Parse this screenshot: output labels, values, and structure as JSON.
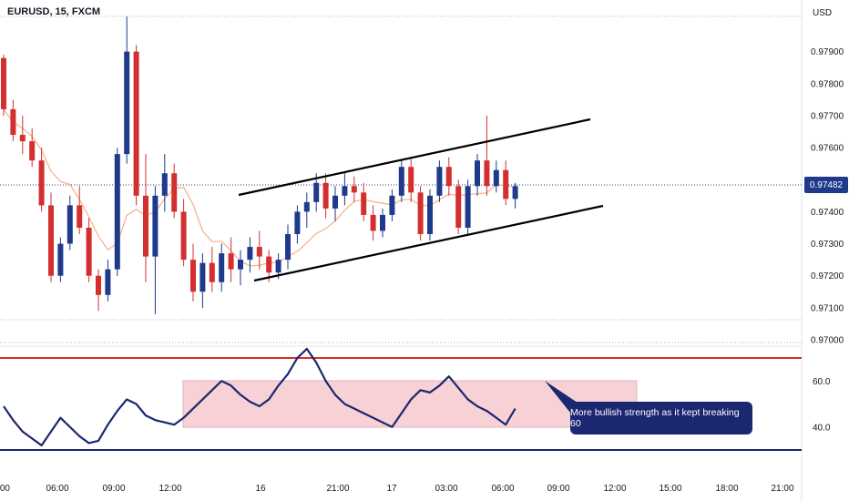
{
  "header": {
    "symbol_label": "EURUSD, 15, FXCM",
    "currency": "USD"
  },
  "current_price": {
    "label": "0.97482",
    "value": 0.97482,
    "color": "#1e3a8a"
  },
  "annotation": {
    "text": "More bullish strength as it kept breaking 60"
  },
  "colors": {
    "up": "#1e3a8a",
    "down": "#d32f2f",
    "ma": "#f6b48f",
    "channel": "#000000",
    "rsi": "#1b2770",
    "band_fill": "#f7c9d0",
    "upper_level": "#d32f2f",
    "lower_level": "#1b2770"
  },
  "chart_data": [
    {
      "type": "candlestick",
      "title": "EURUSD, 15, FXCM",
      "ylabel": "USD",
      "ylim": [
        0.97,
        0.9801
      ],
      "y_ticks": [
        "0.97900",
        "0.97800",
        "0.97700",
        "0.97600",
        "0.97500",
        "0.97400",
        "0.97300",
        "0.97200",
        "0.97100",
        "0.97000"
      ],
      "x_tick_labels": [
        ":00",
        "06:00",
        "09:00",
        "12:00",
        "16",
        "21:00",
        "17",
        "03:00",
        "06:00",
        "09:00",
        "12:00",
        "15:00",
        "18:00",
        "21:00"
      ],
      "candles": [
        [
          0.9788,
          0.9789,
          0.977,
          0.9772
        ],
        [
          0.9772,
          0.9775,
          0.9762,
          0.9764
        ],
        [
          0.9764,
          0.977,
          0.9758,
          0.9762
        ],
        [
          0.9762,
          0.9766,
          0.9754,
          0.9756
        ],
        [
          0.9756,
          0.976,
          0.974,
          0.9742
        ],
        [
          0.9742,
          0.9746,
          0.9718,
          0.972
        ],
        [
          0.972,
          0.9732,
          0.9718,
          0.973
        ],
        [
          0.973,
          0.9745,
          0.9728,
          0.9742
        ],
        [
          0.9742,
          0.9748,
          0.9733,
          0.9735
        ],
        [
          0.9735,
          0.9738,
          0.9718,
          0.972
        ],
        [
          0.972,
          0.9722,
          0.9709,
          0.9714
        ],
        [
          0.9714,
          0.9725,
          0.9712,
          0.9722
        ],
        [
          0.9722,
          0.976,
          0.972,
          0.9758
        ],
        [
          0.9758,
          0.9801,
          0.9755,
          0.979
        ],
        [
          0.979,
          0.9792,
          0.9742,
          0.9745
        ],
        [
          0.9745,
          0.9758,
          0.9718,
          0.9726
        ],
        [
          0.9726,
          0.9748,
          0.9708,
          0.9745
        ],
        [
          0.9745,
          0.9758,
          0.974,
          0.9752
        ],
        [
          0.9752,
          0.9755,
          0.9738,
          0.974
        ],
        [
          0.974,
          0.9744,
          0.9723,
          0.9725
        ],
        [
          0.9725,
          0.973,
          0.9712,
          0.9715
        ],
        [
          0.9715,
          0.9727,
          0.971,
          0.9724
        ],
        [
          0.9724,
          0.9729,
          0.9715,
          0.9718
        ],
        [
          0.9718,
          0.973,
          0.9715,
          0.9727
        ],
        [
          0.9727,
          0.9732,
          0.9718,
          0.9722
        ],
        [
          0.9722,
          0.9728,
          0.9717,
          0.9725
        ],
        [
          0.9725,
          0.9732,
          0.9721,
          0.9729
        ],
        [
          0.9729,
          0.9734,
          0.9722,
          0.9726
        ],
        [
          0.9726,
          0.9728,
          0.9718,
          0.9721
        ],
        [
          0.9721,
          0.9727,
          0.9719,
          0.9725
        ],
        [
          0.9725,
          0.9736,
          0.9722,
          0.9733
        ],
        [
          0.9733,
          0.9742,
          0.973,
          0.974
        ],
        [
          0.974,
          0.9746,
          0.9735,
          0.9743
        ],
        [
          0.9743,
          0.9752,
          0.974,
          0.9749
        ],
        [
          0.9749,
          0.9752,
          0.9738,
          0.9741
        ],
        [
          0.9741,
          0.9748,
          0.9737,
          0.9745
        ],
        [
          0.9745,
          0.9752,
          0.9742,
          0.9748
        ],
        [
          0.9748,
          0.9751,
          0.9743,
          0.9746
        ],
        [
          0.9746,
          0.9749,
          0.9737,
          0.9739
        ],
        [
          0.9739,
          0.9742,
          0.9731,
          0.9734
        ],
        [
          0.9734,
          0.9741,
          0.9732,
          0.9739
        ],
        [
          0.9739,
          0.9747,
          0.9737,
          0.9745
        ],
        [
          0.9745,
          0.9756,
          0.9743,
          0.9754
        ],
        [
          0.9754,
          0.9757,
          0.9743,
          0.9746
        ],
        [
          0.9746,
          0.9748,
          0.9731,
          0.9733
        ],
        [
          0.9733,
          0.9747,
          0.9731,
          0.9745
        ],
        [
          0.9745,
          0.9756,
          0.9743,
          0.9754
        ],
        [
          0.9754,
          0.9757,
          0.9745,
          0.9748
        ],
        [
          0.9748,
          0.975,
          0.9733,
          0.9735
        ],
        [
          0.9735,
          0.975,
          0.9733,
          0.9748
        ],
        [
          0.9748,
          0.9758,
          0.9745,
          0.9756
        ],
        [
          0.9756,
          0.977,
          0.9745,
          0.9748
        ],
        [
          0.9748,
          0.9756,
          0.9746,
          0.9753
        ],
        [
          0.9753,
          0.9756,
          0.9742,
          0.9744
        ],
        [
          0.9744,
          0.9749,
          0.9741,
          0.9748
        ]
      ]
    },
    {
      "type": "line",
      "title": "",
      "ylim": [
        22,
        81
      ],
      "y_ticks": [
        "60.0",
        "40.0"
      ],
      "levels": [
        {
          "value": 70,
          "color": "#d32f2f"
        },
        {
          "value": 30,
          "color": "#1b2770"
        }
      ],
      "band": [
        40,
        60
      ],
      "series": [
        {
          "values": [
            49,
            43,
            38,
            35,
            32,
            38,
            44,
            40,
            36,
            33,
            34,
            41,
            47,
            52,
            50,
            45,
            43,
            42,
            41,
            44,
            48,
            52,
            56,
            60,
            58,
            54,
            51,
            49,
            52,
            58,
            63,
            70,
            74,
            68,
            60,
            54,
            50,
            48,
            46,
            44,
            42,
            40,
            46,
            52,
            56,
            55,
            58,
            62,
            57,
            52,
            49,
            47,
            44,
            41,
            48
          ]
        }
      ]
    }
  ]
}
